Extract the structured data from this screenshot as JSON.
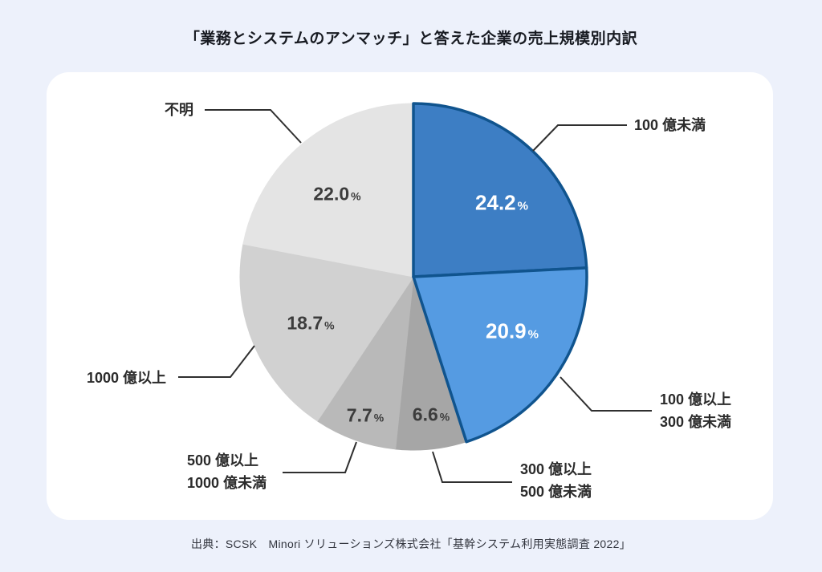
{
  "page": {
    "title": "「業務とシステムのアンマッチ」と答えた企業の売上規模別内訳",
    "source": "出典：SCSK　Minori ソリューションズ株式会社「基幹システム利用実態調査 2022」",
    "background_color": "#edf1fb",
    "card_color": "#ffffff"
  },
  "chart_data": {
    "type": "pie",
    "title": "「業務とシステムのアンマッチ」と答えた企業の売上規模別内訳",
    "unit": "%",
    "start_angle_deg": -90,
    "direction": "clockwise",
    "legend_position": "outside-callouts",
    "slices": [
      {
        "label_lines": [
          "100 億未満"
        ],
        "value": 24.2,
        "display": "24.2",
        "fill": "#3d7ec4",
        "stroke": "#10548e",
        "value_color": "#ffffff"
      },
      {
        "label_lines": [
          "100 億以上",
          "300 億未満"
        ],
        "value": 20.9,
        "display": "20.9",
        "fill": "#559be2",
        "stroke": "#10548e",
        "value_color": "#ffffff"
      },
      {
        "label_lines": [
          "300 億以上",
          "500 億未満"
        ],
        "value": 6.6,
        "display": "6.6",
        "fill": "#a6a6a6",
        "value_color": "#3c3c3c"
      },
      {
        "label_lines": [
          "500 億以上",
          "1000 億未満"
        ],
        "value": 7.7,
        "display": "7.7",
        "fill": "#b9b9b9",
        "value_color": "#3c3c3c"
      },
      {
        "label_lines": [
          "1000 億以上"
        ],
        "value": 18.7,
        "display": "18.7",
        "fill": "#d1d1d1",
        "value_color": "#3c3c3c"
      },
      {
        "label_lines": [
          "不明"
        ],
        "value": 22.0,
        "display": "22.0",
        "fill": "#e4e4e4",
        "value_color": "#3c3c3c"
      }
    ]
  }
}
